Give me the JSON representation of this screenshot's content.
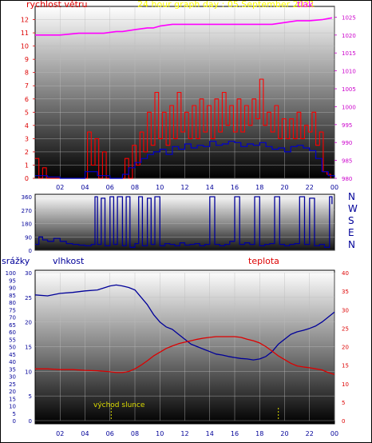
{
  "page": {
    "title": "24 hour graph day : 05.September 2021"
  },
  "colors": {
    "frame": "#000000",
    "bg_top": "#ffffff",
    "bg_mid": "#777777",
    "bg_bottom": "#000000",
    "wind": "#ff0000",
    "wind_avg": "#0000cc",
    "pressure": "#ff00ff",
    "direction": "#000099",
    "humidity": "#000099",
    "temperature": "#dd0000",
    "rain": "#0000ff",
    "title": "#ffff00",
    "axis_blue": "#000099",
    "axis_red": "#dd0000",
    "axis_magenta": "#cc00cc",
    "sunrise": "#dddd00"
  },
  "chart_data": [
    {
      "id": "wind-pressure",
      "type": "line",
      "title": "24 hour graph day : 05.September 2021",
      "left_label": "rychlost větru",
      "right_label": "tlak",
      "x_ticks": [
        "02",
        "04",
        "06",
        "08",
        "10",
        "12",
        "14",
        "16",
        "18",
        "20",
        "22",
        "00"
      ],
      "x_range": [
        0,
        24
      ],
      "y_left": {
        "min": 0,
        "max": 13,
        "ticks": [
          0,
          1,
          2,
          3,
          4,
          5,
          6,
          7,
          8,
          9,
          10,
          11,
          12
        ]
      },
      "y_right": {
        "min": 980,
        "max": 1028,
        "ticks": [
          980,
          985,
          990,
          995,
          1000,
          1005,
          1010,
          1015,
          1020,
          1025
        ]
      },
      "series": [
        {
          "key": "pressure",
          "axis": "right",
          "x": [
            0,
            2,
            3.5,
            5.5,
            6.5,
            7,
            8,
            9,
            9.5,
            10,
            11,
            12,
            13,
            14,
            15,
            16,
            17,
            18,
            19,
            20,
            21,
            22,
            23,
            23.8
          ],
          "values": [
            1020,
            1020,
            1020.5,
            1020.5,
            1021,
            1021,
            1021.5,
            1022,
            1022,
            1022.5,
            1023,
            1023,
            1023,
            1023,
            1023,
            1023,
            1023,
            1023,
            1023,
            1023.5,
            1024,
            1024,
            1024.3,
            1024.8
          ]
        },
        {
          "key": "wind_gust",
          "axis": "left",
          "x": [
            0,
            0.3,
            0.6,
            0.9,
            1.2,
            1.5,
            1.8,
            2.1,
            2.4,
            2.7,
            3.0,
            3.3,
            3.6,
            3.9,
            4.2,
            4.5,
            4.8,
            5.1,
            5.4,
            5.7,
            6.0,
            6.3,
            6.6,
            6.9,
            7.2,
            7.5,
            7.8,
            8.1,
            8.4,
            8.7,
            9.0,
            9.3,
            9.6,
            9.9,
            10.2,
            10.5,
            10.8,
            11.1,
            11.4,
            11.7,
            12.0,
            12.3,
            12.6,
            12.9,
            13.2,
            13.5,
            13.8,
            14.1,
            14.4,
            14.7,
            15.0,
            15.3,
            15.6,
            15.9,
            16.2,
            16.5,
            16.8,
            17.1,
            17.4,
            17.7,
            18.0,
            18.3,
            18.6,
            18.9,
            19.2,
            19.5,
            19.8,
            20.1,
            20.4,
            20.7,
            21.0,
            21.3,
            21.6,
            21.9,
            22.2,
            22.5,
            22.8,
            23.1,
            23.4,
            23.7
          ],
          "values": [
            1.5,
            0,
            0.8,
            0,
            0,
            0,
            0,
            0,
            0,
            0,
            0,
            0,
            0,
            0,
            3.5,
            1,
            3,
            0,
            2,
            0,
            0,
            0,
            0,
            0,
            1.5,
            0,
            2.5,
            1,
            3.5,
            2,
            5,
            2.5,
            6.5,
            3,
            5,
            2.5,
            5.5,
            3,
            6.5,
            3.5,
            5,
            3,
            5.5,
            3,
            6,
            3.5,
            5.5,
            3,
            6,
            3.5,
            6.5,
            4,
            5.5,
            3.5,
            6,
            3.5,
            5.5,
            4,
            6,
            4.5,
            7.5,
            4,
            5,
            3.5,
            5.5,
            3,
            4.5,
            3,
            4.5,
            3,
            5,
            3,
            4,
            3.5,
            5,
            2.5,
            3.5,
            0.5,
            0.3,
            0
          ]
        },
        {
          "key": "wind_avg",
          "axis": "left",
          "x": [
            0,
            1,
            2,
            3,
            4,
            5,
            6,
            7,
            7.5,
            8,
            8.5,
            9,
            9.5,
            10,
            10.5,
            11,
            11.5,
            12,
            12.5,
            13,
            13.5,
            14,
            14.5,
            15,
            15.5,
            16,
            16.5,
            17,
            17.5,
            18,
            18.5,
            19,
            19.5,
            20,
            20.5,
            21,
            21.5,
            22,
            22.5,
            23,
            23.5,
            24
          ],
          "values": [
            0.2,
            0.1,
            0,
            0,
            0.5,
            0.2,
            0,
            0.3,
            0.8,
            1.2,
            1.5,
            1.8,
            2,
            2.2,
            1.8,
            2.4,
            2.2,
            2.6,
            2.3,
            2.5,
            2.4,
            2.8,
            2.5,
            2.6,
            2.8,
            2.7,
            2.4,
            2.6,
            2.5,
            2.7,
            2.4,
            2.2,
            2.3,
            2,
            2.4,
            2.5,
            2.3,
            2.1,
            1.5,
            0.5,
            0.2,
            0.1
          ]
        }
      ]
    },
    {
      "id": "wind-direction",
      "type": "line",
      "left_ticks": [
        0,
        90,
        180,
        270,
        360
      ],
      "compass_labels": [
        "N",
        "W",
        "S",
        "E",
        "N"
      ],
      "x_range": [
        0,
        24
      ],
      "y_range": [
        0,
        360
      ],
      "series": [
        {
          "key": "direction",
          "x": [
            0,
            0.3,
            0.6,
            1,
            1.5,
            2,
            2.5,
            3,
            3.5,
            4,
            4.5,
            4.8,
            5,
            5.3,
            5.6,
            6,
            6.3,
            6.6,
            7,
            7.3,
            7.6,
            8,
            8.3,
            8.6,
            9,
            9.3,
            9.6,
            10,
            10.4,
            10.8,
            11.2,
            11.6,
            12,
            12.4,
            12.8,
            13.2,
            13.6,
            14,
            14.4,
            14.8,
            15.2,
            15.6,
            16,
            16.4,
            16.8,
            17.2,
            17.6,
            18,
            18.4,
            18.8,
            19.2,
            19.6,
            20,
            20.4,
            20.8,
            21.2,
            21.6,
            22,
            22.4,
            22.8,
            23.2,
            23.6,
            23.8
          ],
          "values": [
            40,
            90,
            70,
            60,
            80,
            60,
            45,
            40,
            35,
            30,
            40,
            360,
            40,
            350,
            30,
            360,
            40,
            360,
            30,
            360,
            20,
            45,
            360,
            30,
            350,
            40,
            360,
            30,
            45,
            40,
            30,
            50,
            35,
            40,
            45,
            30,
            40,
            360,
            40,
            30,
            40,
            60,
            360,
            40,
            50,
            40,
            360,
            30,
            40,
            45,
            360,
            40,
            30,
            40,
            45,
            360,
            40,
            350,
            30,
            40,
            20,
            360,
            310
          ]
        }
      ]
    },
    {
      "id": "humidity-temperature",
      "type": "line",
      "left_label_1": "srážky",
      "left_label_2": "vlhkost",
      "right_label": "teplota",
      "sunrise_label": "východ slunce",
      "sunrise_hour": 6.1,
      "sunset_hour": 19.5,
      "x_ticks": [
        "02",
        "04",
        "06",
        "08",
        "10",
        "12",
        "14",
        "16",
        "18",
        "20",
        "22",
        "00"
      ],
      "x_range": [
        0,
        24
      ],
      "rain_axis": {
        "min": 0,
        "max": 100,
        "ticks": [
          0,
          5,
          10,
          15,
          20,
          25,
          30,
          35,
          40,
          45,
          50,
          55,
          60,
          65,
          70,
          75,
          80,
          85,
          90,
          95,
          100
        ]
      },
      "humidity_axis": {
        "min": 0,
        "max": 30,
        "ticks": [
          0,
          5,
          10,
          15,
          20,
          25,
          30
        ]
      },
      "temperature_axis": {
        "min": 0,
        "max": 40,
        "ticks": [
          0,
          5,
          10,
          15,
          20,
          25,
          30,
          35,
          40
        ]
      },
      "series": [
        {
          "key": "humidity",
          "axis": "humidity",
          "x": [
            0,
            1,
            2,
            3,
            4,
            5,
            6,
            6.5,
            7,
            7.5,
            8,
            8.5,
            9,
            9.5,
            10,
            10.5,
            11,
            11.5,
            12,
            12.5,
            13,
            13.5,
            14,
            14.5,
            15,
            15.5,
            16,
            16.5,
            17,
            17.5,
            18,
            18.5,
            19,
            19.5,
            20,
            20.5,
            21,
            21.5,
            22,
            22.5,
            23,
            23.5,
            24
          ],
          "values": [
            25.5,
            25.3,
            25.8,
            26,
            26.3,
            26.5,
            27.3,
            27.5,
            27.3,
            27,
            26.5,
            25,
            23.5,
            21.5,
            20,
            19,
            18.5,
            17.5,
            16.5,
            15.5,
            15,
            14.5,
            14,
            13.5,
            13.3,
            13,
            12.8,
            12.6,
            12.5,
            12.3,
            12.5,
            13,
            14,
            15.5,
            16.5,
            17.5,
            18,
            18.3,
            18.7,
            19.2,
            20,
            21,
            22
          ]
        },
        {
          "key": "temperature",
          "axis": "temperature",
          "x": [
            0,
            1,
            2,
            3,
            4,
            5,
            6,
            6.5,
            7,
            7.5,
            8,
            8.5,
            9,
            9.5,
            10,
            10.5,
            11,
            11.5,
            12,
            12.5,
            13,
            13.5,
            14,
            14.5,
            15,
            15.5,
            16,
            16.5,
            17,
            17.5,
            18,
            18.5,
            19,
            19.5,
            20,
            20.5,
            21,
            21.5,
            22,
            22.5,
            23,
            23.5,
            24
          ],
          "values": [
            14,
            14,
            13.8,
            13.8,
            13.6,
            13.5,
            13.2,
            13,
            13,
            13.3,
            14,
            15,
            16.2,
            17.5,
            18.5,
            19.5,
            20.2,
            20.8,
            21.2,
            21.6,
            22,
            22.3,
            22.5,
            22.7,
            22.7,
            22.7,
            22.7,
            22.5,
            22,
            21.6,
            21,
            20,
            18.8,
            17.5,
            16.5,
            15.5,
            14.8,
            14.5,
            14.3,
            14,
            13.7,
            13,
            12.5
          ]
        }
      ]
    }
  ]
}
